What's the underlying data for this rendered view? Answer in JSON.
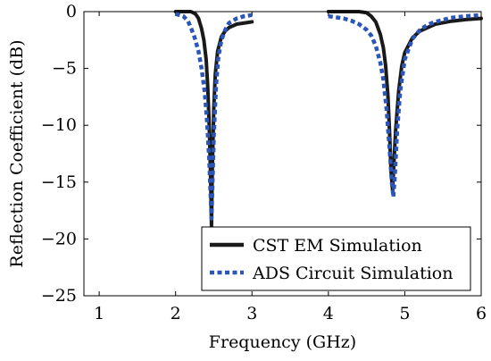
{
  "chart_data": {
    "type": "line",
    "title": "",
    "xlabel": "Frequency (GHz)",
    "ylabel": "Reflection Coefficient (dB)",
    "xlim": [
      0.8,
      6
    ],
    "ylim": [
      -25,
      0
    ],
    "xticks": [
      1,
      2,
      3,
      4,
      5,
      6
    ],
    "xtick_labels": [
      "1",
      "2",
      "3",
      "4",
      "5",
      "6"
    ],
    "yticks": [
      0,
      -5,
      -10,
      -15,
      -20,
      -25
    ],
    "ytick_labels": [
      "0",
      "−5",
      "−10",
      "−15",
      "−20",
      "−25"
    ],
    "grid": false,
    "legend_position": "bottom-right",
    "series": [
      {
        "name": "CST EM Simulation",
        "color": "#1a1a1a",
        "style": "solid",
        "segments": [
          {
            "x": [
              2.0,
              2.1,
              2.2,
              2.26,
              2.3,
              2.34,
              2.37,
              2.4,
              2.42,
              2.44,
              2.46,
              2.47,
              2.48,
              2.5,
              2.52,
              2.55,
              2.6,
              2.65,
              2.7,
              2.8,
              2.9,
              3.0
            ],
            "y": [
              0,
              0,
              0,
              -0.2,
              -0.6,
              -1.5,
              -2.5,
              -4.2,
              -6.5,
              -10.0,
              -15.0,
              -19.0,
              -14.0,
              -8.5,
              -5.5,
              -3.5,
              -2.2,
              -1.7,
              -1.4,
              -1.1,
              -1.0,
              -0.9
            ]
          },
          {
            "x": [
              4.0,
              4.2,
              4.4,
              4.5,
              4.56,
              4.62,
              4.68,
              4.72,
              4.75,
              4.78,
              4.8,
              4.82,
              4.84,
              4.86,
              4.88,
              4.92,
              4.96,
              5.0,
              5.1,
              5.2,
              5.4,
              5.6,
              5.8,
              6.0
            ],
            "y": [
              0,
              0,
              0,
              -0.1,
              -0.4,
              -0.9,
              -2.0,
              -3.2,
              -4.8,
              -7.5,
              -10.5,
              -14.0,
              -15.7,
              -13.0,
              -10.5,
              -7.0,
              -4.8,
              -3.6,
              -2.3,
              -1.7,
              -1.1,
              -0.85,
              -0.7,
              -0.6
            ]
          }
        ]
      },
      {
        "name": "ADS Circuit Simulation",
        "color": "#2b56b8",
        "style": "dashed",
        "segments": [
          {
            "x": [
              2.0,
              2.1,
              2.16,
              2.2,
              2.25,
              2.3,
              2.34,
              2.38,
              2.41,
              2.44,
              2.46,
              2.47,
              2.48,
              2.5,
              2.53,
              2.56,
              2.6,
              2.65,
              2.7,
              2.8,
              2.9,
              3.0
            ],
            "y": [
              -0.2,
              -0.4,
              -0.8,
              -1.4,
              -2.3,
              -3.5,
              -5.0,
              -7.0,
              -9.5,
              -13.0,
              -16.5,
              -18.2,
              -16.0,
              -11.0,
              -6.5,
              -4.0,
              -2.5,
              -1.6,
              -1.0,
              -0.6,
              -0.4,
              -0.3
            ]
          },
          {
            "x": [
              4.0,
              4.1,
              4.2,
              4.3,
              4.4,
              4.5,
              4.56,
              4.62,
              4.68,
              4.72,
              4.76,
              4.8,
              4.83,
              4.85,
              4.87,
              4.9,
              4.94,
              5.0,
              5.1,
              5.2,
              5.3,
              5.4,
              5.6,
              5.8,
              6.0
            ],
            "y": [
              -0.4,
              -0.5,
              -0.6,
              -0.8,
              -1.1,
              -1.6,
              -2.1,
              -3.0,
              -4.5,
              -6.0,
              -8.5,
              -12.0,
              -15.0,
              -16.3,
              -14.5,
              -10.5,
              -7.0,
              -4.2,
              -2.4,
              -1.6,
              -1.15,
              -0.9,
              -0.55,
              -0.4,
              -0.3
            ]
          }
        ]
      }
    ]
  }
}
